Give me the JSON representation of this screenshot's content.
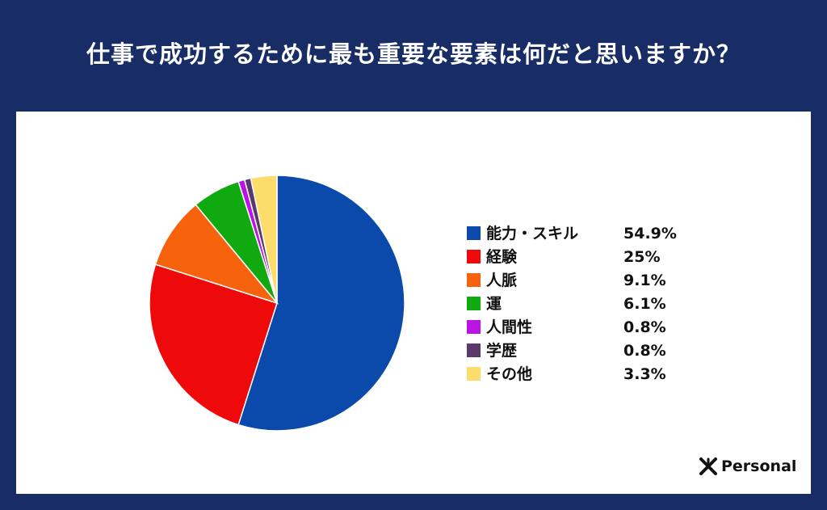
{
  "header": {
    "title": "仕事で成功するために最も重要な要素は何だと思いますか？"
  },
  "chart_data": {
    "type": "pie",
    "title": "仕事で成功するために最も重要な要素は何だと思いますか？",
    "categories": [
      "能力・スキル",
      "経験",
      "人脈",
      "運",
      "人間性",
      "学歴",
      "その他"
    ],
    "values": [
      54.9,
      25,
      9.1,
      6.1,
      0.8,
      0.8,
      3.3
    ],
    "value_labels": [
      "54.9%",
      "25%",
      "9.1%",
      "6.1%",
      "0.8%",
      "0.8%",
      "3.3%"
    ],
    "colors": [
      "#0b4aaa",
      "#ee0a0a",
      "#f7630c",
      "#10aa10",
      "#bb13e4",
      "#5a3a6a",
      "#fcdc6b"
    ],
    "legend": "right"
  },
  "brand": {
    "name": "Personal",
    "icon": "x-logo-icon"
  }
}
